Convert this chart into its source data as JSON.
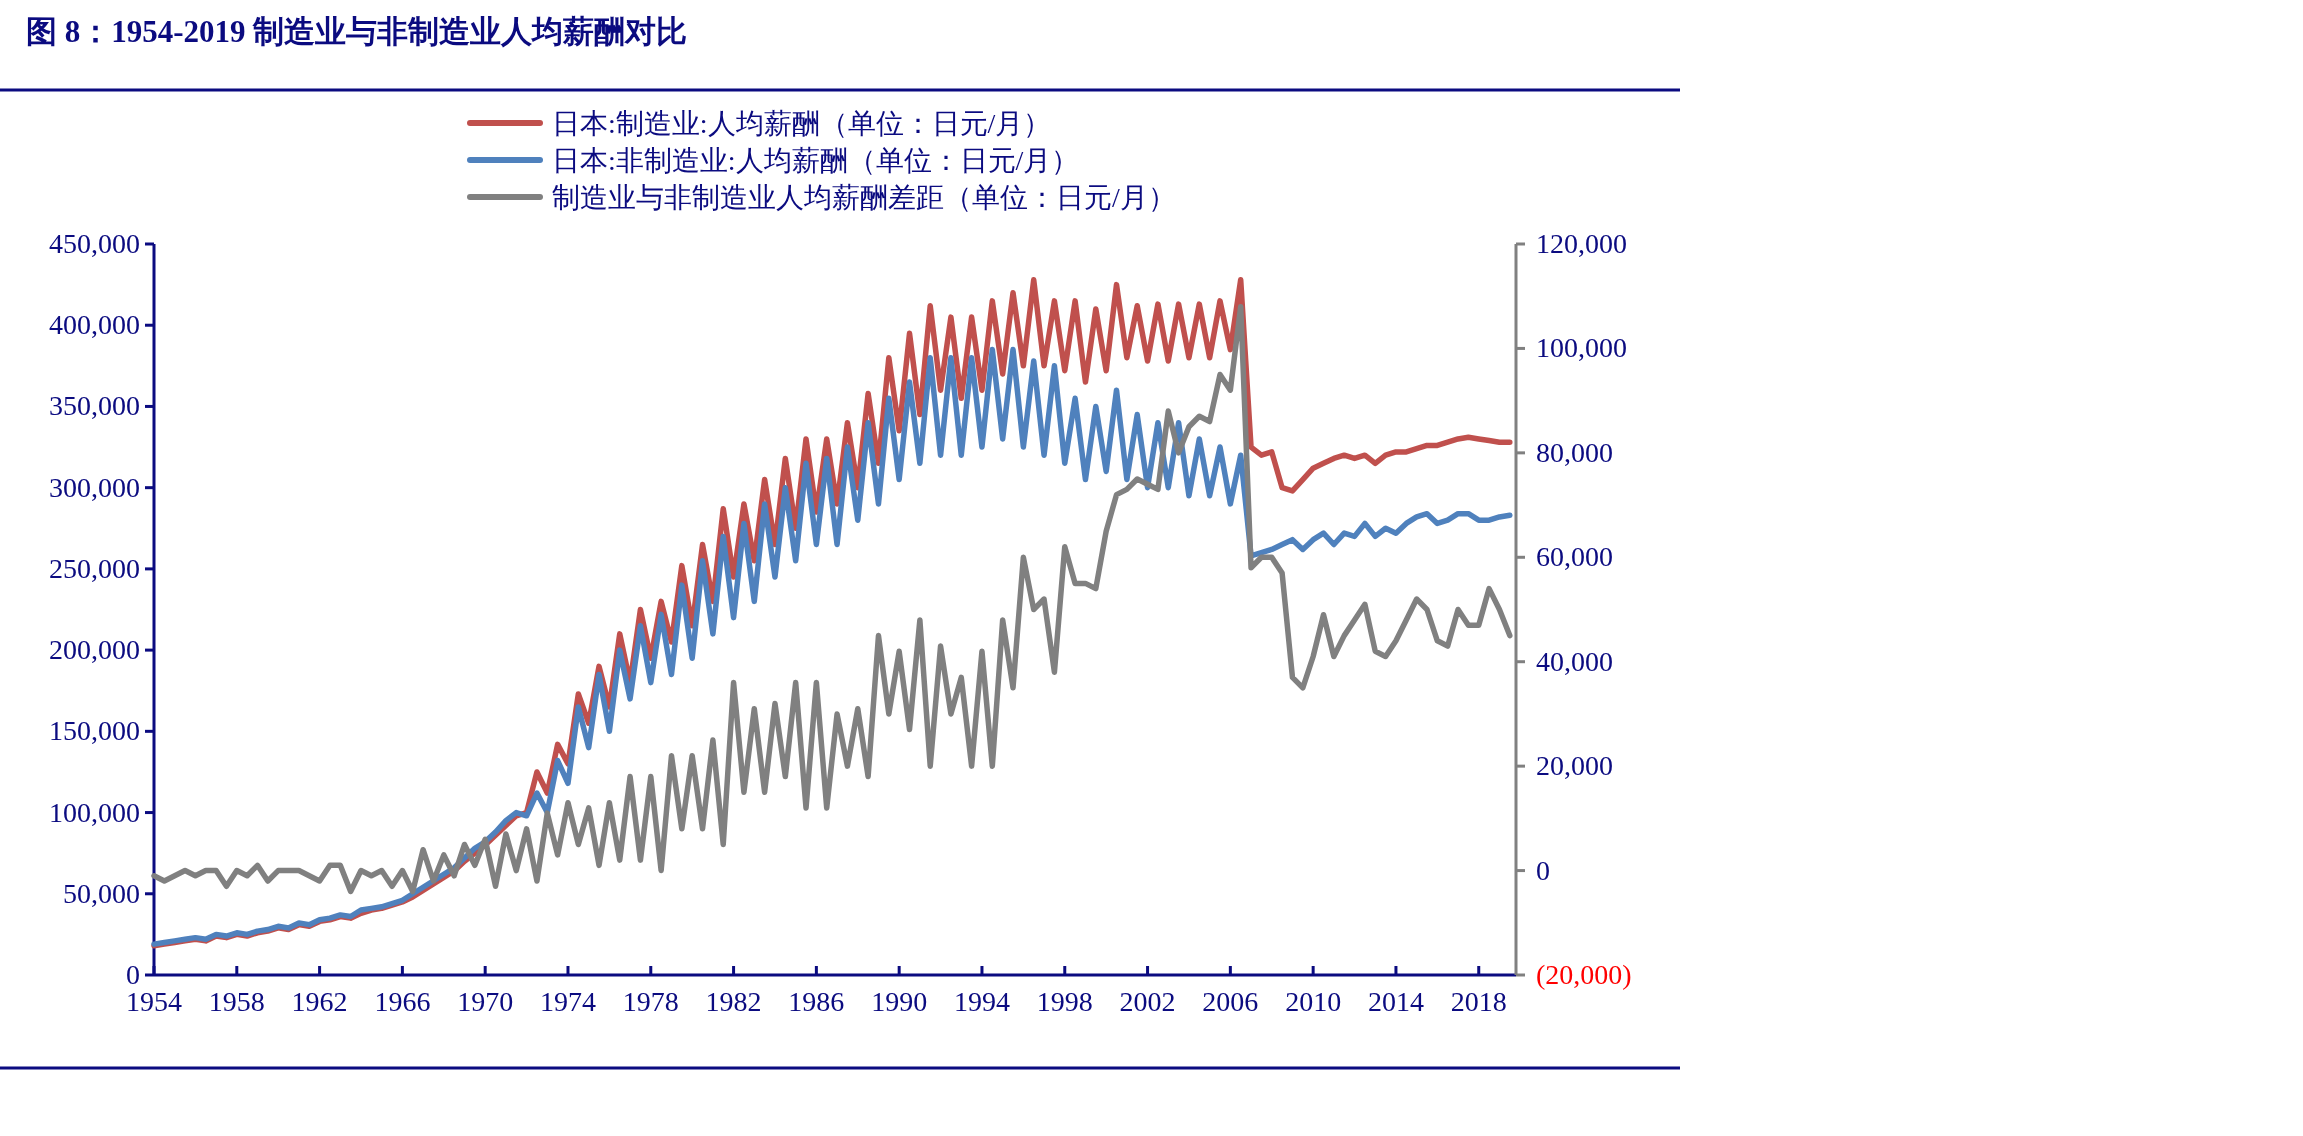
{
  "chart_data": {
    "type": "line",
    "title": "图 8：1954-2019 制造业与非制造业人均薪酬对比",
    "x": [
      1954,
      1954.5,
      1955,
      1955.5,
      1956,
      1956.5,
      1957,
      1957.5,
      1958,
      1958.5,
      1959,
      1959.5,
      1960,
      1960.5,
      1961,
      1961.5,
      1962,
      1962.5,
      1963,
      1963.5,
      1964,
      1964.5,
      1965,
      1965.5,
      1966,
      1966.5,
      1967,
      1967.5,
      1968,
      1968.5,
      1969,
      1969.5,
      1970,
      1970.5,
      1971,
      1971.5,
      1972,
      1972.5,
      1973,
      1973.5,
      1974,
      1974.5,
      1975,
      1975.5,
      1976,
      1976.5,
      1977,
      1977.5,
      1978,
      1978.5,
      1979,
      1979.5,
      1980,
      1980.5,
      1981,
      1981.5,
      1982,
      1982.5,
      1983,
      1983.5,
      1984,
      1984.5,
      1985,
      1985.5,
      1986,
      1986.5,
      1987,
      1987.5,
      1988,
      1988.5,
      1989,
      1989.5,
      1990,
      1990.5,
      1991,
      1991.5,
      1992,
      1992.5,
      1993,
      1993.5,
      1994,
      1994.5,
      1995,
      1995.5,
      1996,
      1996.5,
      1997,
      1997.5,
      1998,
      1998.5,
      1999,
      1999.5,
      2000,
      2000.5,
      2001,
      2001.5,
      2002,
      2002.5,
      2003,
      2003.5,
      2004,
      2004.5,
      2005,
      2005.5,
      2006,
      2006.5,
      2007,
      2007.5,
      2008,
      2008.5,
      2009,
      2009.5,
      2010,
      2010.5,
      2011,
      2011.5,
      2012,
      2012.5,
      2013,
      2013.5,
      2014,
      2014.5,
      2015,
      2015.5,
      2016,
      2016.5,
      2017,
      2017.5,
      2018,
      2018.5,
      2019,
      2019.5
    ],
    "series": [
      {
        "name": "日本:制造业:人均薪酬（单位：日元/月）",
        "color": "#c0504d",
        "values": [
          18000,
          19000,
          20000,
          21000,
          22000,
          21000,
          24000,
          23000,
          25000,
          24000,
          26000,
          27000,
          29000,
          28000,
          31000,
          30000,
          33000,
          34000,
          36000,
          35000,
          38000,
          40000,
          41000,
          43000,
          45000,
          48000,
          52000,
          56000,
          60000,
          64000,
          70000,
          75000,
          80000,
          86000,
          92000,
          98000,
          100000,
          125000,
          112000,
          142000,
          130000,
          173000,
          155000,
          190000,
          165000,
          210000,
          180000,
          225000,
          195000,
          230000,
          205000,
          252000,
          215000,
          265000,
          230000,
          287000,
          245000,
          290000,
          255000,
          305000,
          265000,
          318000,
          275000,
          330000,
          285000,
          330000,
          290000,
          340000,
          300000,
          358000,
          315000,
          380000,
          335000,
          395000,
          345000,
          412000,
          360000,
          405000,
          355000,
          405000,
          360000,
          415000,
          370000,
          420000,
          375000,
          428000,
          375000,
          415000,
          372000,
          415000,
          365000,
          410000,
          372000,
          425000,
          380000,
          412000,
          378000,
          413000,
          378000,
          413000,
          380000,
          413000,
          380000,
          415000,
          385000,
          428000,
          325000,
          320000,
          322000,
          300000,
          298000,
          305000,
          312000,
          315000,
          318000,
          320000,
          318000,
          320000,
          315000,
          320000,
          322000,
          322000,
          324000,
          326000,
          326000,
          328000,
          330000,
          331000,
          330000,
          329000,
          328000,
          328000
        ]
      },
      {
        "name": "日本:非制造业:人均薪酬（单位：日元/月）",
        "color": "#4f81bd",
        "values": [
          19000,
          20000,
          21000,
          22000,
          23000,
          22000,
          25000,
          24000,
          26000,
          25000,
          27000,
          28000,
          30000,
          29000,
          32000,
          31000,
          34000,
          35000,
          37000,
          36000,
          40000,
          41000,
          42000,
          44000,
          46000,
          50000,
          54000,
          58000,
          62000,
          66000,
          72000,
          78000,
          82000,
          88000,
          95000,
          100000,
          98000,
          112000,
          100000,
          132000,
          118000,
          165000,
          140000,
          185000,
          150000,
          200000,
          170000,
          215000,
          180000,
          222000,
          185000,
          240000,
          195000,
          255000,
          210000,
          270000,
          220000,
          278000,
          230000,
          290000,
          245000,
          300000,
          255000,
          315000,
          265000,
          318000,
          265000,
          325000,
          280000,
          340000,
          290000,
          355000,
          305000,
          365000,
          315000,
          380000,
          320000,
          380000,
          320000,
          380000,
          325000,
          385000,
          330000,
          385000,
          325000,
          378000,
          320000,
          375000,
          315000,
          355000,
          305000,
          350000,
          310000,
          360000,
          305000,
          345000,
          300000,
          340000,
          300000,
          340000,
          295000,
          330000,
          295000,
          325000,
          290000,
          320000,
          258000,
          260000,
          262000,
          265000,
          268000,
          262000,
          268000,
          272000,
          265000,
          272000,
          270000,
          278000,
          270000,
          275000,
          272000,
          278000,
          282000,
          284000,
          278000,
          280000,
          284000,
          284000,
          280000,
          280000,
          282000,
          283000
        ]
      },
      {
        "name": "制造业与非制造业人均薪酬差距（单位：日元/月）",
        "color": "#808080",
        "axis": "y2",
        "values": [
          -1000,
          -2000,
          -1000,
          0,
          -1000,
          0,
          0,
          -3000,
          0,
          -1000,
          1000,
          -2000,
          0,
          0,
          0,
          -1000,
          -2000,
          1000,
          1000,
          -4000,
          0,
          -1000,
          0,
          -3000,
          0,
          -4000,
          4000,
          -2000,
          3000,
          -1000,
          5000,
          1000,
          6000,
          -3000,
          7000,
          0,
          8000,
          -2000,
          11000,
          3000,
          13000,
          5000,
          12000,
          1000,
          13000,
          2000,
          18000,
          2000,
          18000,
          0,
          22000,
          8000,
          22000,
          8000,
          25000,
          5000,
          36000,
          15000,
          31000,
          15000,
          32000,
          18000,
          36000,
          12000,
          36000,
          12000,
          30000,
          20000,
          31000,
          18000,
          45000,
          30000,
          42000,
          27000,
          48000,
          20000,
          43000,
          30000,
          37000,
          20000,
          42000,
          20000,
          48000,
          35000,
          60000,
          50000,
          52000,
          38000,
          62000,
          55000,
          55000,
          54000,
          65000,
          72000,
          73000,
          75000,
          74000,
          73000,
          88000,
          80000,
          85000,
          87000,
          86000,
          95000,
          92000,
          108000,
          58000,
          60000,
          60000,
          57000,
          37000,
          35000,
          41000,
          49000,
          41000,
          45000,
          48000,
          51000,
          42000,
          41000,
          44000,
          48000,
          52000,
          50000,
          44000,
          43000,
          50000,
          47000,
          47000,
          54000,
          50000,
          45000
        ]
      }
    ],
    "xlim": [
      1954,
      2019.8
    ],
    "xticks": [
      1954,
      1958,
      1962,
      1966,
      1970,
      1974,
      1978,
      1982,
      1986,
      1990,
      1994,
      1998,
      2002,
      2006,
      2010,
      2014,
      2018
    ],
    "ylim": [
      0,
      450000
    ],
    "yticks": [
      0,
      {
        "value": 50000,
        "label": "50,000"
      },
      {
        "value": 100000,
        "label": "100,000"
      },
      {
        "value": 150000,
        "label": "150,000"
      },
      {
        "value": 200000,
        "label": "200,000"
      },
      {
        "value": 250000,
        "label": "250,000"
      },
      {
        "value": 300000,
        "label": "300,000"
      },
      {
        "value": 350000,
        "label": "350,000"
      },
      {
        "value": 400000,
        "label": "400,000"
      },
      {
        "value": 450000,
        "label": "450,000"
      }
    ],
    "y2lim": [
      -20000,
      120000
    ],
    "y2ticks": [
      {
        "value": -20000,
        "label": "(20,000)"
      },
      0,
      {
        "value": 20000,
        "label": "20,000"
      },
      {
        "value": 40000,
        "label": "40,000"
      },
      {
        "value": 60000,
        "label": "60,000"
      },
      {
        "value": 80000,
        "label": "80,000"
      },
      {
        "value": 100000,
        "label": "100,000"
      },
      {
        "value": 120000,
        "label": "120,000"
      }
    ],
    "legend": "top",
    "grid": false,
    "marker": "none",
    "line_style": "solid"
  }
}
